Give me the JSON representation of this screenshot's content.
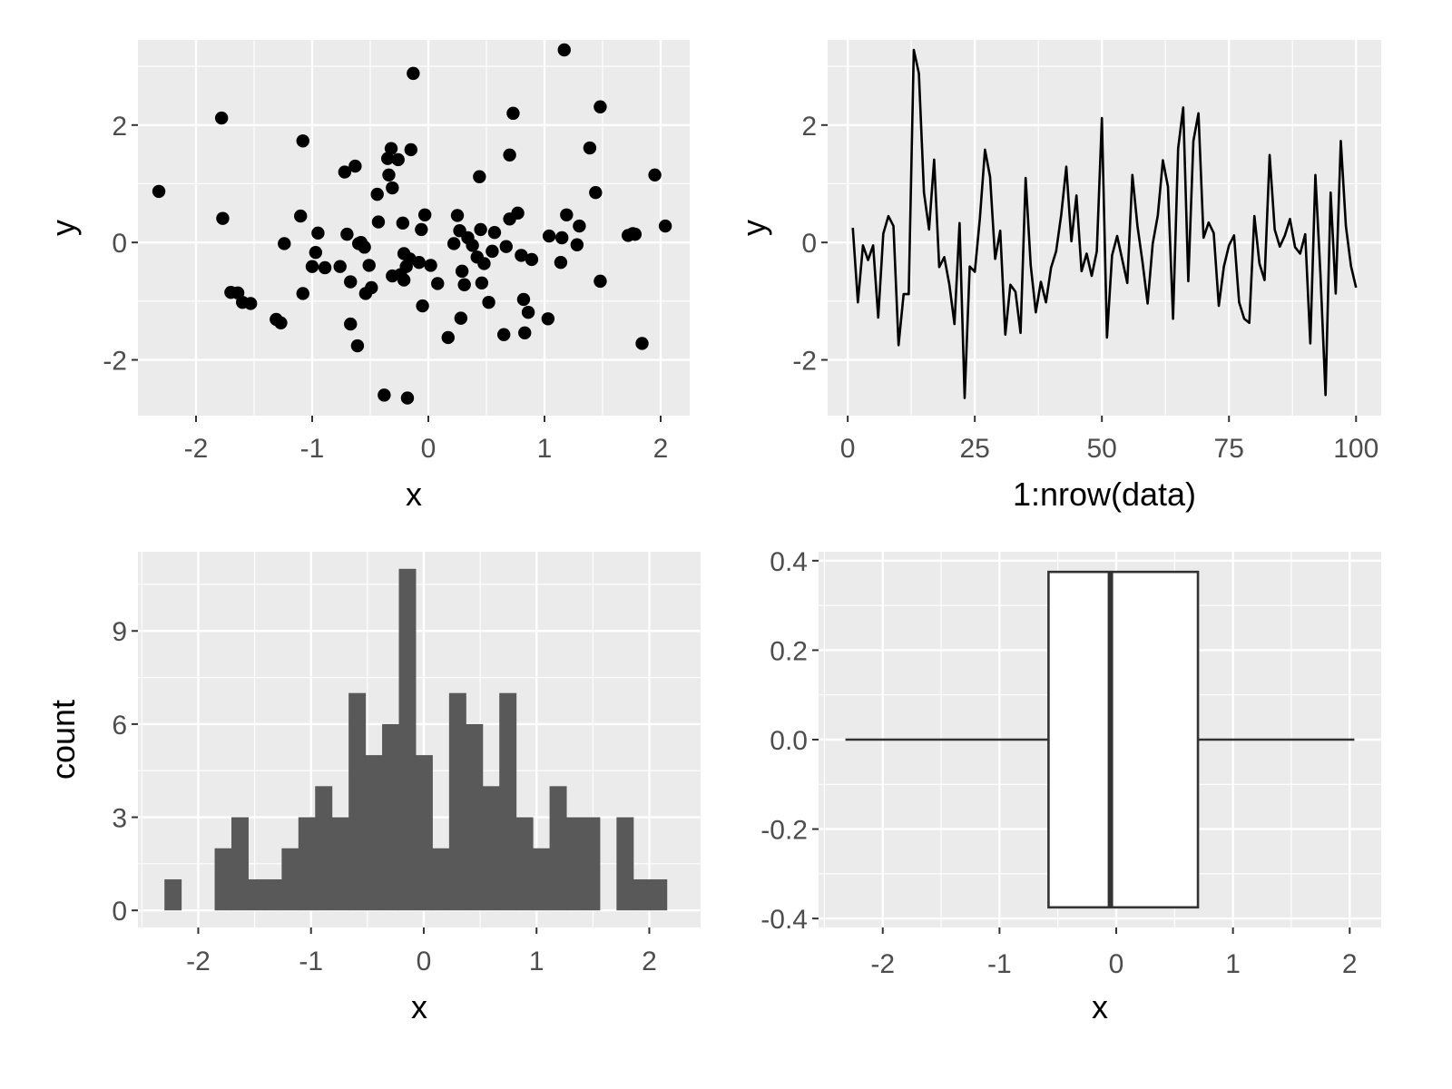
{
  "chart_data": [
    {
      "type": "scatter",
      "xlabel": "x",
      "ylabel": "y",
      "xlim": [
        -2.5,
        2.25
      ],
      "ylim": [
        -2.95,
        3.45
      ],
      "xticks": [
        -2,
        -1,
        0,
        1,
        2
      ],
      "yticks": [
        -2,
        0,
        2
      ],
      "xtick_labels": [
        "-2",
        "-1",
        "0",
        "1",
        "2"
      ],
      "ytick_labels": [
        "-2",
        "0",
        "2"
      ],
      "grid": true,
      "point_color": "#000000",
      "points": [
        [
          -2.32,
          0.87
        ],
        [
          -1.78,
          2.12
        ],
        [
          -1.77,
          0.41
        ],
        [
          -1.7,
          -0.85
        ],
        [
          -1.64,
          -0.86
        ],
        [
          -1.6,
          -1.02
        ],
        [
          -1.53,
          -1.04
        ],
        [
          -1.31,
          -1.31
        ],
        [
          -1.27,
          -1.37
        ],
        [
          -1.24,
          -0.02
        ],
        [
          -1.1,
          0.45
        ],
        [
          -1.08,
          1.73
        ],
        [
          -1.08,
          -0.87
        ],
        [
          -1.0,
          -0.41
        ],
        [
          -0.97,
          -0.17
        ],
        [
          -0.95,
          0.16
        ],
        [
          -0.89,
          -0.43
        ],
        [
          -0.76,
          -0.41
        ],
        [
          -0.72,
          1.2
        ],
        [
          -0.7,
          0.14
        ],
        [
          -0.67,
          -0.67
        ],
        [
          -0.67,
          -1.39
        ],
        [
          -0.63,
          1.3
        ],
        [
          -0.61,
          -1.76
        ],
        [
          -0.58,
          0.0
        ],
        [
          -0.55,
          -0.08
        ],
        [
          -0.54,
          -0.87
        ],
        [
          -0.51,
          -0.39
        ],
        [
          -0.49,
          -0.77
        ],
        [
          -0.44,
          0.82
        ],
        [
          -0.43,
          0.35
        ],
        [
          -0.38,
          -2.6
        ],
        [
          -0.35,
          1.43
        ],
        [
          -0.34,
          1.15
        ],
        [
          -0.32,
          1.6
        ],
        [
          -0.31,
          0.93
        ],
        [
          -0.31,
          -0.57
        ],
        [
          -0.26,
          1.41
        ],
        [
          -0.24,
          -0.55
        ],
        [
          -0.22,
          0.33
        ],
        [
          -0.21,
          -0.19
        ],
        [
          -0.21,
          -0.64
        ],
        [
          -0.19,
          -0.41
        ],
        [
          -0.18,
          -2.65
        ],
        [
          -0.16,
          -0.28
        ],
        [
          -0.15,
          1.58
        ],
        [
          -0.13,
          2.88
        ],
        [
          -0.08,
          -0.34
        ],
        [
          -0.06,
          0.22
        ],
        [
          -0.05,
          -1.08
        ],
        [
          -0.03,
          0.47
        ],
        [
          0.02,
          -0.39
        ],
        [
          0.08,
          -0.7
        ],
        [
          0.22,
          -0.02
        ],
        [
          0.25,
          0.46
        ],
        [
          0.27,
          0.2
        ],
        [
          0.28,
          -1.29
        ],
        [
          0.29,
          -0.49
        ],
        [
          0.31,
          -0.72
        ],
        [
          0.34,
          0.08
        ],
        [
          0.38,
          -0.05
        ],
        [
          0.42,
          -0.25
        ],
        [
          0.44,
          1.12
        ],
        [
          0.45,
          0.22
        ],
        [
          0.46,
          -0.69
        ],
        [
          0.48,
          -0.36
        ],
        [
          0.52,
          -1.02
        ],
        [
          0.55,
          -0.15
        ],
        [
          0.57,
          0.17
        ],
        [
          0.65,
          -1.57
        ],
        [
          0.67,
          -0.07
        ],
        [
          0.7,
          1.49
        ],
        [
          0.7,
          0.4
        ],
        [
          0.73,
          2.2
        ],
        [
          0.77,
          0.5
        ],
        [
          0.8,
          -0.22
        ],
        [
          0.82,
          -0.97
        ],
        [
          0.83,
          -1.54
        ],
        [
          0.86,
          -1.19
        ],
        [
          0.89,
          -0.29
        ],
        [
          1.03,
          -1.3
        ],
        [
          1.04,
          0.11
        ],
        [
          1.14,
          -0.34
        ],
        [
          1.15,
          0.08
        ],
        [
          1.17,
          3.28
        ],
        [
          1.19,
          0.47
        ],
        [
          1.28,
          -0.04
        ],
        [
          1.3,
          0.28
        ],
        [
          1.39,
          1.61
        ],
        [
          1.44,
          0.85
        ],
        [
          1.48,
          2.31
        ],
        [
          1.48,
          -0.66
        ],
        [
          1.72,
          0.12
        ],
        [
          1.76,
          0.15
        ],
        [
          1.78,
          0.14
        ],
        [
          1.84,
          -1.72
        ],
        [
          1.95,
          1.15
        ],
        [
          2.04,
          0.28
        ],
        [
          0.17,
          -1.62
        ],
        [
          -0.6,
          -0.02
        ]
      ]
    },
    {
      "type": "line",
      "xlabel": "1:nrow(data)",
      "ylabel": "y",
      "xlim": [
        -3.95,
        104.95
      ],
      "ylim": [
        -2.95,
        3.45
      ],
      "xticks": [
        0,
        25,
        50,
        75,
        100
      ],
      "yticks": [
        -2,
        0,
        2
      ],
      "xtick_labels": [
        "0",
        "25",
        "50",
        "75",
        "100"
      ],
      "ytick_labels": [
        "-2",
        "0",
        "2"
      ],
      "grid": true,
      "line_color": "#000000",
      "x_start": 1,
      "x_step": 1,
      "y": [
        0.25,
        -1.02,
        -0.05,
        -0.3,
        -0.05,
        -1.28,
        0.15,
        0.45,
        0.28,
        -1.75,
        -0.88,
        -0.88,
        3.28,
        2.88,
        0.85,
        0.22,
        1.41,
        -0.42,
        -0.25,
        -0.72,
        -1.39,
        0.33,
        -2.65,
        -0.41,
        -0.5,
        0.41,
        1.58,
        1.12,
        -0.28,
        0.2,
        -1.57,
        -0.72,
        -0.84,
        -1.54,
        1.1,
        -0.39,
        -1.19,
        -0.67,
        -1.02,
        -0.43,
        -0.15,
        0.47,
        1.29,
        0.02,
        0.8,
        -0.49,
        -0.19,
        -0.57,
        -0.15,
        2.12,
        -1.62,
        -0.22,
        0.11,
        -0.29,
        -0.69,
        1.15,
        0.28,
        -0.34,
        -1.04,
        -0.02,
        0.46,
        1.4,
        0.95,
        -1.3,
        1.6,
        2.3,
        -0.66,
        1.73,
        2.2,
        0.08,
        0.34,
        0.16,
        -1.08,
        -0.41,
        -0.05,
        0.12,
        -1.02,
        -1.3,
        -1.37,
        0.45,
        -0.36,
        -0.64,
        1.49,
        0.22,
        -0.07,
        0.12,
        0.4,
        -0.08,
        -0.19,
        0.14,
        -1.72,
        1.15,
        -0.55,
        -2.6,
        0.85,
        -0.87,
        1.73,
        0.28,
        -0.4,
        -0.77
      ]
    },
    {
      "type": "bar",
      "subtype": "histogram",
      "xlabel": "x",
      "ylabel": "count",
      "xlim": [
        -2.535,
        2.455
      ],
      "ylim": [
        -0.55,
        11.55
      ],
      "xticks": [
        -2,
        -1,
        0,
        1,
        2
      ],
      "yticks": [
        0,
        3,
        6,
        9
      ],
      "xtick_labels": [
        "-2",
        "-1",
        "0",
        "1",
        "2"
      ],
      "ytick_labels": [
        "0",
        "3",
        "6",
        "9"
      ],
      "grid": true,
      "fill_color": "#595959",
      "bin_start": -2.3,
      "bin_width": 0.1485,
      "counts": [
        1,
        0,
        0,
        2,
        3,
        1,
        1,
        2,
        3,
        4,
        3,
        7,
        5,
        6,
        11,
        5,
        2,
        7,
        6,
        4,
        7,
        3,
        2,
        4,
        3,
        3,
        0,
        3,
        1,
        1
      ]
    },
    {
      "type": "boxplot",
      "orientation": "horizontal",
      "xlabel": "x",
      "ylabel": "",
      "xlim": [
        -2.55,
        2.27
      ],
      "ylim": [
        -0.42,
        0.42
      ],
      "xticks": [
        -2,
        -1,
        0,
        1,
        2
      ],
      "yticks": [
        -0.4,
        -0.2,
        0.0,
        0.2,
        0.4
      ],
      "xtick_labels": [
        "-2",
        "-1",
        "0",
        "1",
        "2"
      ],
      "ytick_labels": [
        "-0.4",
        "-0.2",
        "0.0",
        "0.2",
        "0.4"
      ],
      "grid": true,
      "box_fill": "#ffffff",
      "line_color": "#333333",
      "whisker_low": -2.32,
      "q1": -0.58,
      "median": -0.05,
      "q3": 0.7,
      "whisker_high": 2.04,
      "box_half_height": 0.375
    }
  ]
}
